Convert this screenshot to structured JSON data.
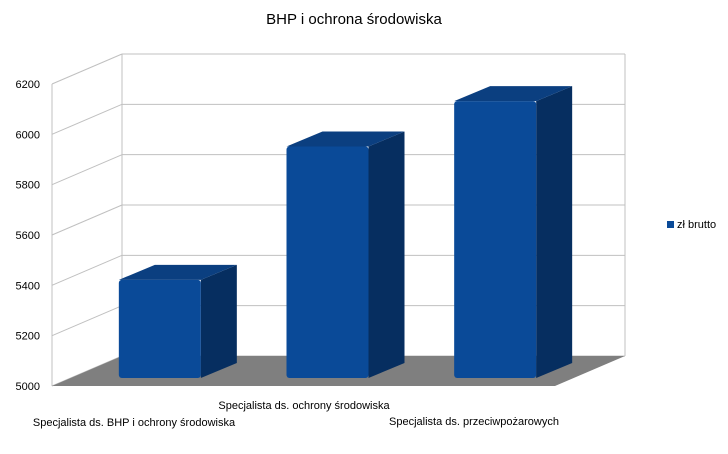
{
  "chart_data": {
    "type": "bar",
    "title": "BHP i ochrona środowiska",
    "categories": [
      "Specjalista ds. BHP i ochrony środowiska",
      "Specjalista ds. ochrony środowiska",
      "Specjalista ds. przeciwpożarowych"
    ],
    "series": [
      {
        "name": "zł brutto",
        "values": [
          5390,
          5920,
          6100
        ]
      }
    ],
    "ylim": [
      5000,
      6200
    ],
    "y_ticks": [
      5000,
      5200,
      5400,
      5600,
      5800,
      6000,
      6200
    ],
    "grid": true,
    "legend": "right",
    "three_d": true,
    "colors": {
      "bar_front": "#0a4a98",
      "bar_side": "#062e60",
      "bar_top": "#0b3f80",
      "floor": "#7f7f7f",
      "grid": "#c0c0c0",
      "text": "#000000"
    }
  }
}
